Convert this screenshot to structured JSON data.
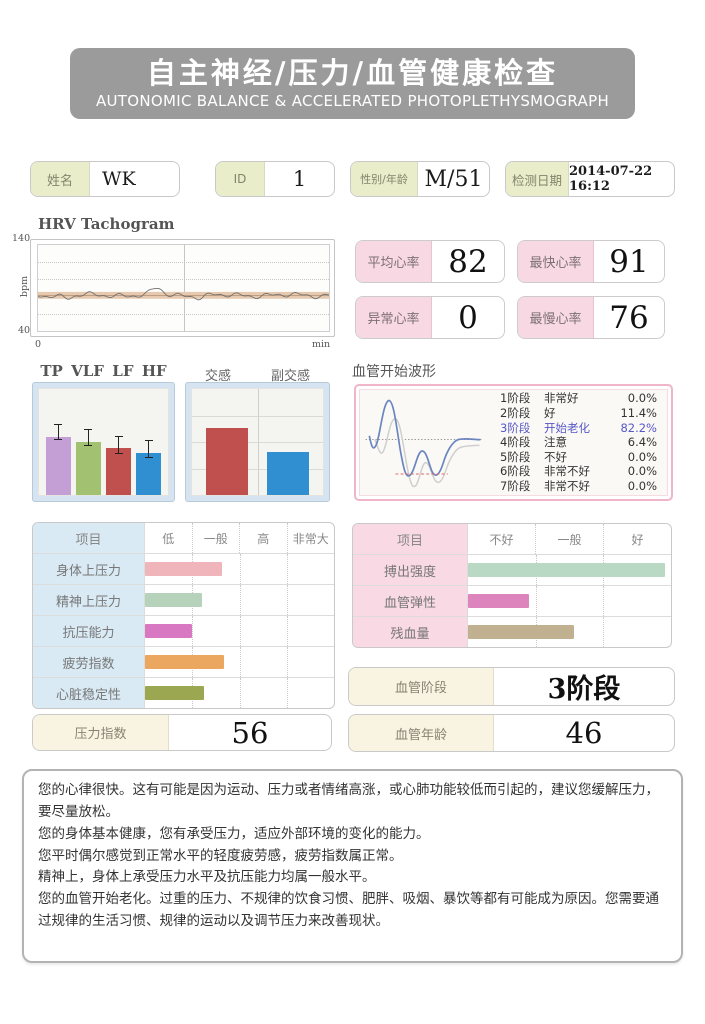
{
  "header": {
    "title_cn": "自主神经/压力/血管健康检查",
    "title_en": "AUTONOMIC BALANCE & ACCELERATED PHOTOPLETHYSMOGRAPH"
  },
  "patient": {
    "name_label": "姓名",
    "name_value": "WK",
    "id_label": "ID",
    "id_value": "1",
    "sex_age_label": "性别/年龄",
    "sex_age_value": "M/51",
    "date_label": "检测日期",
    "date_value": "2014-07-22 16:12"
  },
  "hrv_chart": {
    "title": "HRV Tachogram",
    "y_max": "140",
    "y_min": "40",
    "y_unit": "bpm",
    "x_min": "0",
    "x_unit": "min"
  },
  "heart_rate_boxes": [
    {
      "label": "平均心率",
      "value": "82"
    },
    {
      "label": "最快心率",
      "value": "91"
    },
    {
      "label": "异常心率",
      "value": "0"
    },
    {
      "label": "最慢心率",
      "value": "76"
    }
  ],
  "wave_panel": {
    "title": "血管开始波形",
    "highlight_color": "#5757c8",
    "stages": [
      {
        "stage": "1阶段",
        "label": "非常好",
        "pct": "0.0%",
        "highlight": false
      },
      {
        "stage": "2阶段",
        "label": "好",
        "pct": "11.4%",
        "highlight": false
      },
      {
        "stage": "3阶段",
        "label": "开始老化",
        "pct": "82.2%",
        "highlight": true
      },
      {
        "stage": "4阶段",
        "label": "注意",
        "pct": "6.4%",
        "highlight": false
      },
      {
        "stage": "5阶段",
        "label": "不好",
        "pct": "0.0%",
        "highlight": false
      },
      {
        "stage": "6阶段",
        "label": "非常不好",
        "pct": "0.0%",
        "highlight": false
      },
      {
        "stage": "7阶段",
        "label": "非常不好",
        "pct": "0.0%",
        "highlight": false
      }
    ]
  },
  "stress_table": {
    "label_bg": "#d9eaf4",
    "label_width": 112,
    "headers": [
      "项目",
      "低",
      "一般",
      "高",
      "非常大"
    ],
    "rows": [
      {
        "label": "身体上压力",
        "value": 41,
        "color": "#f0b4bb"
      },
      {
        "label": "精神上压力",
        "value": 30,
        "color": "#b7d2ba"
      },
      {
        "label": "抗压能力",
        "value": 25,
        "color": "#d877c2"
      },
      {
        "label": "疲劳指数",
        "value": 42,
        "color": "#eba660"
      },
      {
        "label": "心脏稳定性",
        "value": 31,
        "color": "#9ca752"
      }
    ]
  },
  "vessel_table": {
    "label_bg": "#f8d9e4",
    "label_width": 115,
    "headers": [
      "项目",
      "不好",
      "一般",
      "好"
    ],
    "rows": [
      {
        "label": "搏出强度",
        "value": 97,
        "color": "#bad9c5"
      },
      {
        "label": "血管弹性",
        "value": 30,
        "color": "#de84bd"
      },
      {
        "label": "残血量",
        "value": 52,
        "color": "#c1b191"
      }
    ]
  },
  "summary_boxes": {
    "stress_index": {
      "label": "压力指数",
      "value": "56"
    },
    "vessel_stage": {
      "label": "血管阶段",
      "value": "3阶段"
    },
    "vessel_age": {
      "label": "血管年龄",
      "value": "46"
    }
  },
  "advice_lines": [
    "您的心律很快。这有可能是因为运动、压力或者情绪高涨，或心肺功能较低而引起的，建议您缓解压力，要尽量放松。",
    "您的身体基本健康，您有承受压力，适应外部环境的变化的能力。",
    "您平时偶尔感觉到正常水平的轻度疲劳感，疲劳指数属正常。",
    "精神上，身体上承受压力水平及抗压能力均属一般水平。",
    "您的血管开始老化。过重的压力、不规律的饮食习惯、肥胖、吸烟、暴饮等都有可能成为原因。您需要通过规律的生活习惯、规律的运动以及调节压力来改善现状。"
  ],
  "chart_data": [
    {
      "id": "hrv_tachogram",
      "type": "line",
      "title": "HRV Tachogram",
      "ylabel": "bpm",
      "ylim": [
        40,
        140
      ],
      "xlabel": "min",
      "x_start": 0,
      "mean_level_bpm": 82,
      "grid": true,
      "note": "nearly flat heart-rate trace oscillating around 82 bpm with one small spike"
    },
    {
      "id": "freq_bands",
      "type": "bar",
      "categories": [
        "TP",
        "VLF",
        "LF",
        "HF"
      ],
      "values": [
        55,
        50,
        44,
        40
      ],
      "error_bars": [
        [
          52,
          66
        ],
        [
          46,
          61
        ],
        [
          39,
          55
        ],
        [
          35,
          51
        ]
      ],
      "colors": [
        "#c49fd6",
        "#a2c272",
        "#c0504e",
        "#2f8fd0"
      ],
      "ylim": [
        0,
        100
      ]
    },
    {
      "id": "autonomic_balance",
      "type": "bar",
      "categories": [
        "交感",
        "副交感"
      ],
      "values": [
        63,
        41
      ],
      "colors": [
        "#c0504e",
        "#2f8fd0"
      ],
      "ylim": [
        0,
        100
      ],
      "grid": true
    }
  ]
}
